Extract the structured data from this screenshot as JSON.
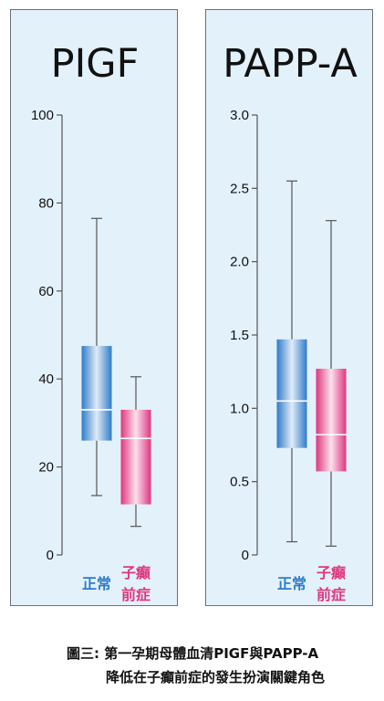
{
  "colors": {
    "normal": "#2f7cc9",
    "preeclampsia": "#e0367f"
  },
  "caption": {
    "line1": "圖三: 第一孕期母體血清PIGF與PAPP-A",
    "line2": "降低在子癲前症的發生扮演關鍵角色"
  },
  "chart_data": [
    {
      "type": "box",
      "title": "PIGF",
      "ylim": [
        0,
        100
      ],
      "y_ticks": [
        "0",
        "20",
        "40",
        "60",
        "80",
        "100"
      ],
      "categories": [
        {
          "label_line1": "正常",
          "label_line2": "",
          "whisker_low": 13.5,
          "q1": 26,
          "median": 33,
          "q3": 47.5,
          "whisker_high": 76.5
        },
        {
          "label_line1": "子癲",
          "label_line2": "前症",
          "whisker_low": 6.5,
          "q1": 11.5,
          "median": 26.5,
          "q3": 33,
          "whisker_high": 40.5
        }
      ]
    },
    {
      "type": "box",
      "title": "PAPP-A",
      "ylim": [
        0,
        3.0
      ],
      "y_ticks": [
        "0",
        "0.5",
        "1.0",
        "1.5",
        "2.0",
        "2.5",
        "3.0"
      ],
      "categories": [
        {
          "label_line1": "正常",
          "label_line2": "",
          "whisker_low": 0.09,
          "q1": 0.73,
          "median": 1.05,
          "q3": 1.47,
          "whisker_high": 2.55
        },
        {
          "label_line1": "子癲",
          "label_line2": "前症",
          "whisker_low": 0.06,
          "q1": 0.57,
          "median": 0.82,
          "q3": 1.27,
          "whisker_high": 2.28
        }
      ]
    }
  ]
}
